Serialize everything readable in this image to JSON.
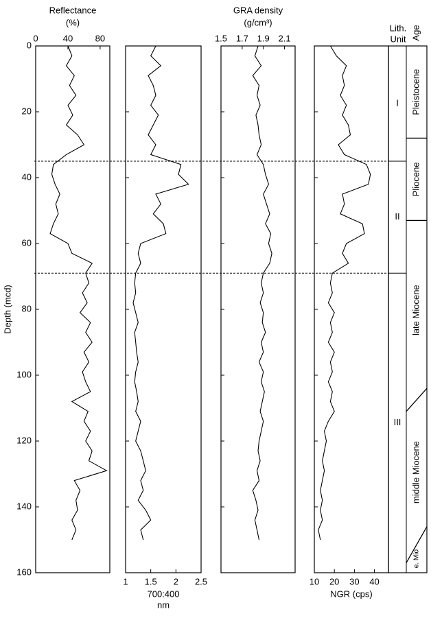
{
  "chart_data": [
    {
      "type": "line",
      "title": "Reflectance",
      "xlabel": [
        "(%)"
      ],
      "xaxis_position": "top",
      "color": "#000000",
      "ylabel": "Depth (mcd)",
      "ylim": [
        0,
        160
      ],
      "yticks": [
        0,
        20,
        40,
        60,
        80,
        100,
        120,
        140,
        160
      ],
      "xlim": [
        0,
        92
      ],
      "xticks": [
        0,
        40,
        80
      ],
      "depth": [
        0,
        3,
        6,
        9,
        12,
        15,
        18,
        21,
        24,
        27,
        30,
        33,
        36,
        39,
        42,
        45,
        48,
        51,
        54,
        57,
        60,
        63,
        66,
        69,
        72,
        75,
        78,
        81,
        84,
        87,
        90,
        93,
        96,
        99,
        102,
        105,
        108,
        111,
        114,
        117,
        120,
        123,
        126,
        129,
        132,
        135,
        138,
        141,
        144,
        147,
        150
      ],
      "values": [
        40,
        45,
        38,
        48,
        42,
        50,
        40,
        46,
        38,
        52,
        60,
        38,
        22,
        20,
        24,
        30,
        25,
        28,
        22,
        18,
        40,
        45,
        70,
        62,
        66,
        58,
        64,
        55,
        68,
        62,
        70,
        60,
        66,
        58,
        62,
        68,
        45,
        65,
        60,
        68,
        62,
        70,
        66,
        88,
        48,
        55,
        50,
        52,
        45,
        50,
        45
      ]
    },
    {
      "type": "line",
      "xlabel": [
        "700:400",
        "nm"
      ],
      "xaxis_position": "bottom",
      "color": "#000000",
      "xlim": [
        1,
        2.5
      ],
      "xticks": [
        1,
        1.5,
        2,
        2.5
      ],
      "depth": [
        0,
        3,
        6,
        9,
        12,
        15,
        18,
        21,
        24,
        27,
        30,
        33,
        36,
        39,
        42,
        45,
        48,
        51,
        54,
        57,
        60,
        63,
        66,
        69,
        72,
        75,
        78,
        81,
        84,
        87,
        90,
        93,
        96,
        99,
        102,
        105,
        108,
        111,
        114,
        117,
        120,
        123,
        126,
        129,
        132,
        135,
        138,
        141,
        144,
        147,
        150
      ],
      "values": [
        1.6,
        1.5,
        1.7,
        1.45,
        1.55,
        1.6,
        1.5,
        1.65,
        1.55,
        1.45,
        1.6,
        1.5,
        2.1,
        2.05,
        2.25,
        1.6,
        1.7,
        1.55,
        1.75,
        1.8,
        1.3,
        1.25,
        1.3,
        1.2,
        1.18,
        1.2,
        1.15,
        1.2,
        1.25,
        1.18,
        1.2,
        1.22,
        1.25,
        1.2,
        1.18,
        1.22,
        1.25,
        1.2,
        1.3,
        1.25,
        1.2,
        1.3,
        1.35,
        1.4,
        1.3,
        1.35,
        1.25,
        1.4,
        1.5,
        1.3,
        1.35
      ]
    },
    {
      "type": "line",
      "title": "GRA density",
      "xlabel": [
        "(g/cm³)"
      ],
      "xaxis_position": "top",
      "color": "#000000",
      "xlim": [
        1.5,
        2.2
      ],
      "xticks": [
        1.5,
        1.7,
        1.9,
        2.1
      ],
      "depth": [
        0,
        3,
        6,
        9,
        12,
        15,
        18,
        21,
        24,
        27,
        30,
        33,
        36,
        39,
        42,
        45,
        48,
        51,
        54,
        57,
        60,
        63,
        66,
        69,
        72,
        75,
        78,
        81,
        84,
        87,
        90,
        93,
        96,
        99,
        102,
        105,
        108,
        111,
        114,
        117,
        120,
        123,
        126,
        129,
        132,
        135,
        138,
        141,
        144,
        147,
        150
      ],
      "values": [
        1.85,
        1.82,
        1.88,
        1.8,
        1.86,
        1.84,
        1.87,
        1.83,
        1.85,
        1.86,
        1.88,
        1.84,
        1.9,
        1.92,
        1.95,
        1.9,
        1.93,
        1.96,
        1.92,
        1.97,
        1.95,
        1.98,
        1.96,
        1.9,
        1.88,
        1.9,
        1.87,
        1.9,
        1.89,
        1.92,
        1.88,
        1.9,
        1.86,
        1.9,
        1.88,
        1.91,
        1.89,
        1.87,
        1.9,
        1.88,
        1.86,
        1.85,
        1.87,
        1.84,
        1.86,
        1.8,
        1.83,
        1.85,
        1.82,
        1.84,
        1.86
      ]
    },
    {
      "type": "line",
      "xlabel": [
        "NGR (cps)"
      ],
      "xaxis_position": "bottom",
      "color": "#000000",
      "xlim": [
        10,
        47
      ],
      "xticks": [
        10,
        20,
        30,
        40
      ],
      "depth": [
        0,
        3,
        6,
        9,
        12,
        15,
        18,
        21,
        24,
        27,
        30,
        33,
        36,
        39,
        42,
        45,
        48,
        51,
        54,
        57,
        60,
        63,
        66,
        69,
        72,
        75,
        78,
        81,
        84,
        87,
        90,
        93,
        96,
        99,
        102,
        105,
        108,
        111,
        114,
        117,
        120,
        123,
        126,
        129,
        132,
        135,
        138,
        141,
        144,
        147,
        150
      ],
      "values": [
        18,
        21,
        26,
        24,
        25,
        23,
        26,
        24,
        27,
        28,
        22,
        25,
        36,
        38,
        37,
        24,
        25,
        23,
        34,
        35,
        26,
        24,
        27,
        19,
        18,
        19,
        17,
        20,
        18,
        19,
        17,
        20,
        18,
        19,
        17,
        19,
        18,
        20,
        17,
        15,
        16,
        15,
        14,
        15,
        14,
        13,
        14,
        13,
        14,
        12,
        13
      ]
    }
  ],
  "stratigraphy": {
    "unit_header": [
      "Lith.",
      "Unit"
    ],
    "age_header": "Age",
    "units": [
      {
        "label": "I",
        "top": 0,
        "base": 35
      },
      {
        "label": "II",
        "top": 35,
        "base": 69
      },
      {
        "label": "III",
        "top": 69,
        "base": 160
      }
    ],
    "ages": [
      {
        "label": "Pleistocene",
        "base": [
          28,
          28
        ]
      },
      {
        "label": "Pliocene",
        "base": [
          53,
          53
        ]
      },
      {
        "label": "late Miocene",
        "base": [
          111,
          104
        ]
      },
      {
        "label": "middle Miocene",
        "base": [
          157,
          146
        ]
      },
      {
        "label": "e. Mio",
        "base": [
          160,
          160
        ]
      }
    ]
  }
}
